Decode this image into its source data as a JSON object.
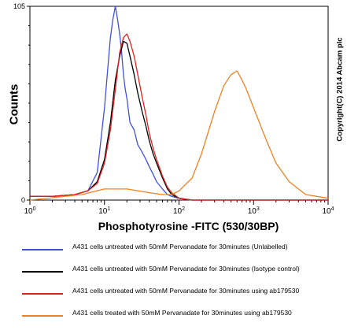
{
  "chart_data": {
    "type": "line",
    "xlabel": "Phosphotyrosine -FITC (530/30BP)",
    "ylabel": "Counts",
    "x_scale": "log",
    "xlim": [
      1,
      10000
    ],
    "ylim": [
      0,
      105
    ],
    "x_ticks": [
      "10^0",
      "10^1",
      "10^2",
      "10^3",
      "10^4"
    ],
    "y_ticks": [
      "0",
      "105"
    ],
    "grid": false,
    "legend_position": "bottom",
    "series": [
      {
        "name": "A431 cells untreated with 50mM Pervanadate  for 30minutes (Unlabelled)",
        "color": "#3f51d8",
        "x": [
          1,
          2,
          4,
          6,
          8,
          10,
          11,
          12,
          13,
          14,
          15,
          16,
          17,
          18,
          19,
          20,
          22,
          25,
          28,
          32,
          36,
          40,
          45,
          50,
          60,
          70,
          80,
          100,
          150,
          300,
          1000,
          10000
        ],
        "y": [
          2,
          2,
          3,
          5,
          15,
          50,
          70,
          88,
          98,
          105,
          98,
          90,
          80,
          68,
          60,
          55,
          42,
          38,
          30,
          26,
          22,
          18,
          14,
          10,
          6,
          3,
          2,
          1,
          0,
          0,
          0,
          0
        ]
      },
      {
        "name": "A431 cells untreated with 50mM Pervanadate  for 30minutes (Isotype control)",
        "color": "#000000",
        "x": [
          1,
          2,
          4,
          6,
          8,
          10,
          12,
          14,
          16,
          18,
          20,
          22,
          25,
          28,
          32,
          36,
          40,
          45,
          50,
          60,
          70,
          80,
          100,
          150,
          300,
          10000
        ],
        "y": [
          2,
          2,
          3,
          5,
          10,
          22,
          42,
          65,
          78,
          86,
          85,
          78,
          68,
          58,
          48,
          40,
          32,
          25,
          20,
          12,
          6,
          3,
          1,
          0,
          0,
          0
        ]
      },
      {
        "name": "A431 cells untreated with 50mM Pervanadate  for 30minutes using ab179530",
        "color": "#e02020",
        "x": [
          1,
          2,
          4,
          6,
          8,
          10,
          12,
          14,
          16,
          18,
          20,
          22,
          25,
          28,
          32,
          36,
          40,
          45,
          50,
          60,
          70,
          80,
          100,
          150,
          300,
          10000
        ],
        "y": [
          2,
          2,
          3,
          5,
          9,
          20,
          38,
          60,
          80,
          88,
          90,
          86,
          78,
          68,
          56,
          46,
          36,
          28,
          22,
          13,
          7,
          4,
          1,
          0,
          0,
          0
        ]
      },
      {
        "name": "A431 cells treated with 50mM Pervanadate  for 30minutes using ab179530",
        "color": "#f08020",
        "x": [
          1,
          5,
          10,
          20,
          40,
          60,
          80,
          100,
          150,
          200,
          300,
          400,
          500,
          600,
          700,
          800,
          1000,
          1500,
          2000,
          3000,
          5000,
          10000
        ],
        "y": [
          0,
          3,
          6,
          6,
          4,
          3,
          3,
          5,
          12,
          25,
          48,
          62,
          68,
          70,
          65,
          60,
          50,
          32,
          20,
          10,
          3,
          1
        ]
      }
    ],
    "annotations": [
      "Copyright(C) 2014 Abcam plc"
    ]
  }
}
